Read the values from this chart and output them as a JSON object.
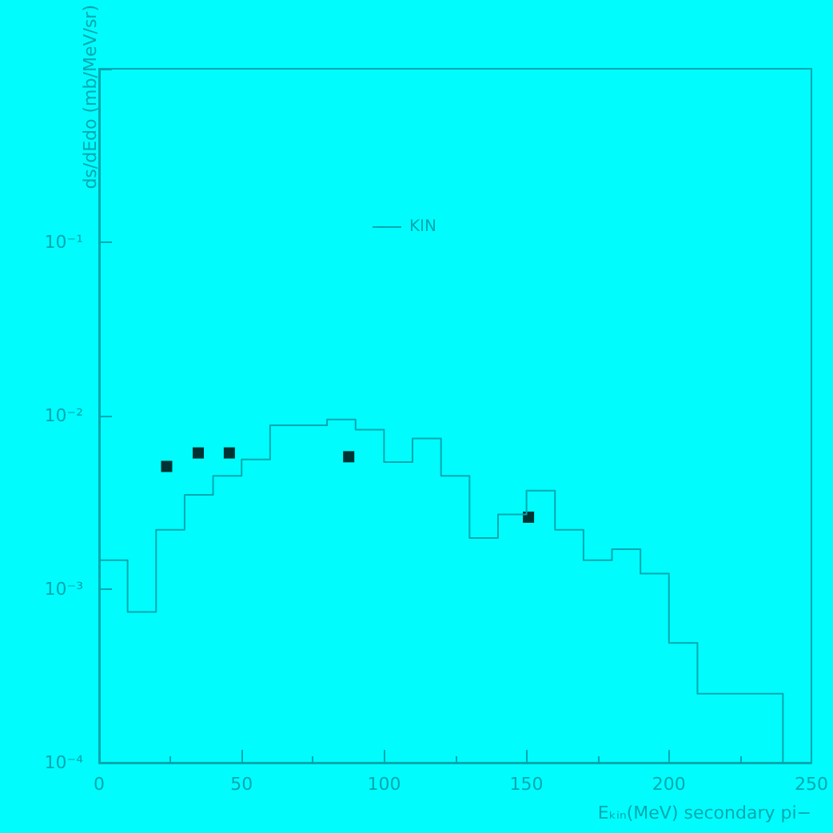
{
  "chart_data": {
    "type": "histogram",
    "xlabel": "Eₖᵢₙ(MeV) secondary pi−",
    "ylabel": "ds/dEdo (mb/MeV/sr)",
    "series": [
      {
        "name": "KIN",
        "color": "#00a8b0",
        "bins": [
          0,
          10,
          20,
          30,
          40,
          50,
          60,
          70,
          80,
          90,
          100,
          110,
          120,
          130,
          140,
          150,
          160,
          170,
          180,
          190,
          200,
          210,
          220,
          230,
          240
        ],
        "values": [
          0.00147,
          0.00074,
          0.0022,
          0.0035,
          0.0045,
          0.0056,
          0.0088,
          0.0088,
          0.0095,
          0.0083,
          0.0054,
          0.0074,
          0.0045,
          0.00197,
          0.0027,
          0.0037,
          0.0022,
          0.00147,
          0.0017,
          0.00123,
          0.00049,
          0.00025,
          0.00025,
          0.00025
        ]
      },
      {
        "type": "scatter",
        "color": "#000000",
        "x": [
          23.7,
          34.8,
          45.7,
          87.6,
          150.7
        ],
        "values": [
          0.0051,
          0.0061,
          0.0061,
          0.0058,
          0.0026
        ]
      }
    ],
    "log": "y",
    "xlim": [
      0,
      250
    ],
    "xticks": [
      0,
      50,
      100,
      150,
      200,
      250
    ],
    "ylim": [
      0.0001,
      1
    ],
    "yticks": [
      {
        "value": 0.0001,
        "label": "10⁻⁴"
      },
      {
        "value": 0.001,
        "label": "10⁻³"
      },
      {
        "value": 0.01,
        "label": "10⁻²"
      },
      {
        "value": 0.1,
        "label": "10⁻¹"
      },
      {
        "value": 1,
        "label": null
      }
    ],
    "marker": "square",
    "grid": false,
    "legend": "top"
  }
}
